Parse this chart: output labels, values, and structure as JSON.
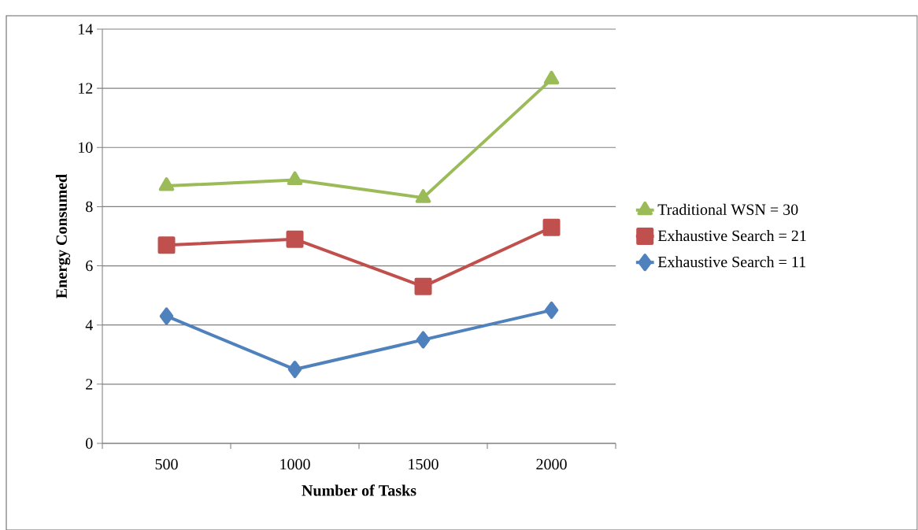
{
  "chart_data": {
    "type": "line",
    "xlabel": "Number of Tasks",
    "ylabel": "Energy Consumed",
    "categories": [
      "500",
      "1000",
      "1500",
      "2000"
    ],
    "series": [
      {
        "name": "Traditional WSN = 30",
        "color": "#9bbb59",
        "marker": "triangle",
        "values": [
          8.7,
          8.9,
          8.3,
          12.3
        ]
      },
      {
        "name": "Exhaustive Search = 21",
        "color": "#c0504d",
        "marker": "square",
        "values": [
          6.7,
          6.9,
          5.3,
          7.3
        ]
      },
      {
        "name": "Exhaustive Search = 11",
        "color": "#4f81bd",
        "marker": "diamond",
        "values": [
          4.3,
          2.5,
          3.5,
          4.5
        ]
      }
    ],
    "ylim": [
      0,
      14
    ],
    "yticks": [
      0,
      2,
      4,
      6,
      8,
      10,
      12,
      14
    ],
    "grid": "y",
    "legend": "right"
  }
}
